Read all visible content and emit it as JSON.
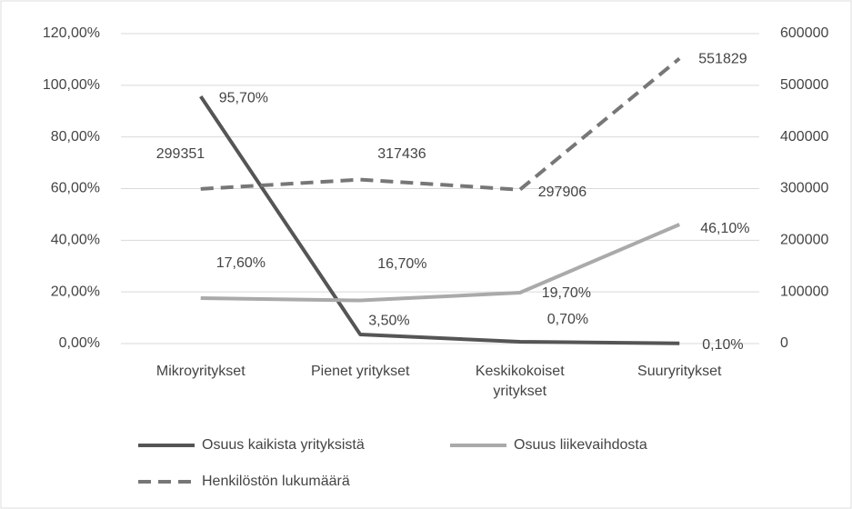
{
  "chart_data": {
    "type": "line",
    "categories": [
      "Mikroyritykset",
      "Pienet yritykset",
      "Keskikokoiset yritykset",
      "Suuryritykset"
    ],
    "series": [
      {
        "name": "Osuus kaikista yrityksistä",
        "color": "#555555",
        "values": [
          95.7,
          3.5,
          0.7,
          0.1
        ],
        "value_labels": [
          "95,70%",
          "3,50%",
          "0,70%",
          "0,10%"
        ]
      },
      {
        "name": "Osuus liikevaihdosta",
        "color": "#aaaaaa",
        "values": [
          17.6,
          16.7,
          19.7,
          46.1
        ],
        "value_labels": [
          "17,60%",
          "16,70%",
          "19,70%",
          "46,10%"
        ]
      },
      {
        "name": "Henkilöstön lukumäärä",
        "color": "#777777",
        "dashed": true,
        "axis": "y2",
        "values": [
          299351,
          317436,
          297906,
          551829
        ]
      }
    ],
    "ylim": [
      0,
      120
    ],
    "yticks": [
      {
        "value": 0,
        "label": "0,00%"
      },
      {
        "value": 20,
        "label": "20,00%"
      },
      {
        "value": 40,
        "label": "40,00%"
      },
      {
        "value": 60,
        "label": "60,00%"
      },
      {
        "value": 80,
        "label": "80,00%"
      },
      {
        "value": 100,
        "label": "100,00%"
      },
      {
        "value": 120,
        "label": "120,00%"
      }
    ],
    "y2lim": [
      0,
      600000
    ],
    "y2ticks": [
      0,
      100000,
      200000,
      300000,
      400000,
      500000,
      600000
    ],
    "grid": true,
    "legend": "bottom"
  }
}
